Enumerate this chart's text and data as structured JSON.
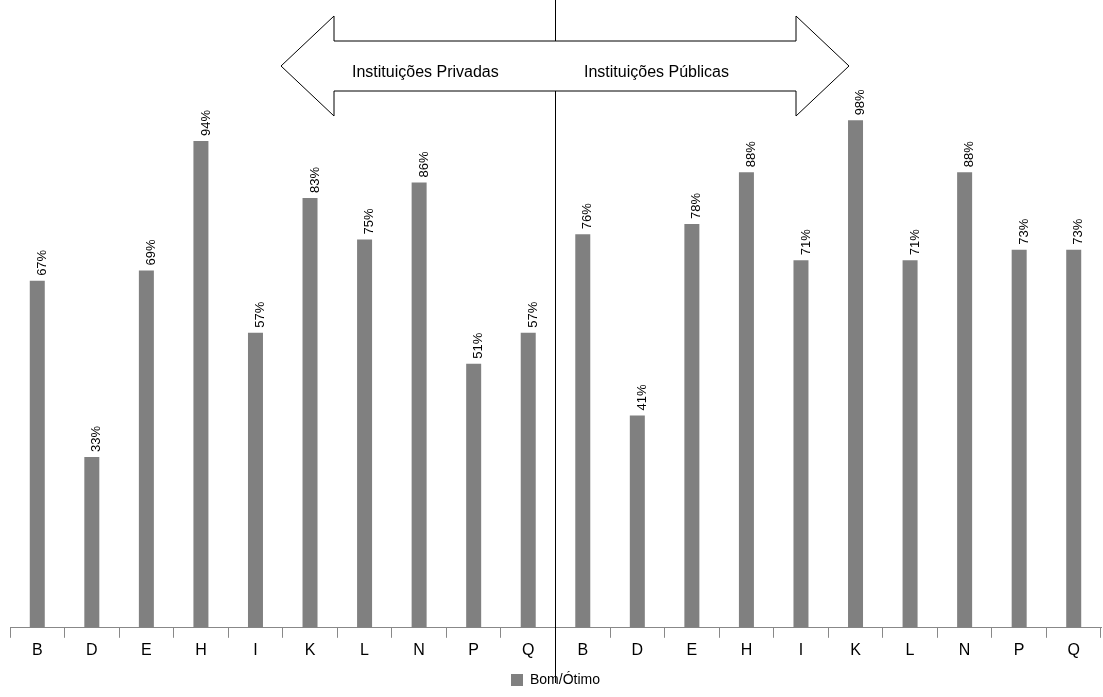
{
  "chart_data": {
    "type": "bar",
    "categories": [
      "B",
      "D",
      "E",
      "H",
      "I",
      "K",
      "L",
      "N",
      "P",
      "Q",
      "B",
      "D",
      "E",
      "H",
      "I",
      "K",
      "L",
      "N",
      "P",
      "Q"
    ],
    "series": [
      {
        "name": "Bom/Ótimo",
        "color": "#808080",
        "values": [
          67,
          33,
          69,
          94,
          57,
          83,
          75,
          86,
          51,
          57,
          76,
          41,
          78,
          88,
          71,
          98,
          71,
          88,
          73,
          73
        ],
        "value_labels": [
          "67%",
          "33%",
          "69%",
          "94%",
          "57%",
          "83%",
          "75%",
          "86%",
          "51%",
          "57%",
          "76%",
          "41%",
          "78%",
          "88%",
          "71%",
          "98%",
          "71%",
          "88%",
          "73%",
          "73%"
        ]
      }
    ],
    "annotations": [
      "Instituições Privadas",
      "Instituições Públicas"
    ],
    "legend": "bottom",
    "grid": false
  }
}
